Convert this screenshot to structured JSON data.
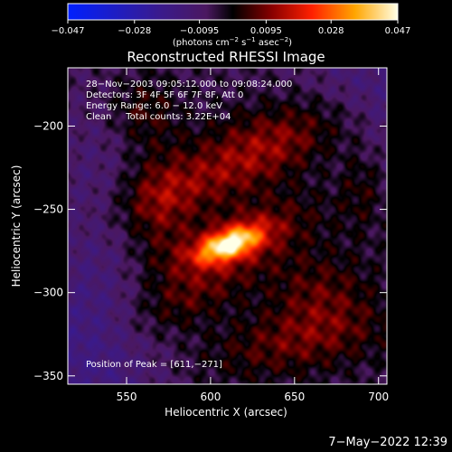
{
  "chart_data": {
    "type": "heatmap",
    "title": "Reconstructed RHESSI Image",
    "xlabel": "Heliocentric X (arcsec)",
    "ylabel": "Heliocentric Y (arcsec)",
    "xlim": [
      515,
      705
    ],
    "ylim": [
      -355,
      -165
    ],
    "x_ticks": [
      550,
      600,
      650,
      700
    ],
    "y_ticks": [
      -200,
      -250,
      -300,
      -350
    ],
    "x_tick_labels": [
      "550",
      "600",
      "650",
      "700"
    ],
    "y_tick_labels": [
      "−200",
      "−250",
      "−300",
      "−350"
    ],
    "colorbar": {
      "range": [
        -0.047,
        0.047
      ],
      "ticks": [
        -0.047,
        -0.028,
        -0.0095,
        0.0095,
        0.028,
        0.047
      ],
      "tick_labels": [
        "−0.047",
        "−0.028",
        "−0.0095",
        "0.0095",
        "0.028",
        "0.047"
      ],
      "unit_prefix": "(photons cm",
      "unit_sup1": "−2",
      "unit_mid": " s",
      "unit_sup2": "−1",
      "unit_mid2": " asec",
      "unit_sup3": "−2",
      "unit_suffix": ")"
    },
    "annotations": [
      "28−Nov−2003 09:05:12.000 to 09:08:24.000",
      "Detectors: 3F 4F 5F 6F 7F 8F, Att 0",
      "Energy Range: 6.0 − 12.0 keV",
      "Clean     Total counts: 3.22E+04"
    ],
    "peak_label": "Position of Peak = [611,−271]",
    "peak": {
      "x": 611,
      "y": -271,
      "value": 0.047
    },
    "sources": [
      {
        "x": 611,
        "y": -271,
        "sx": 14,
        "sy": 6,
        "angle": 20,
        "amp": 0.041
      },
      {
        "x": 618,
        "y": -268,
        "sx": 34,
        "sy": 14,
        "angle": 22,
        "amp": 0.016
      },
      {
        "x": 640,
        "y": -205,
        "sx": 38,
        "sy": 14,
        "angle": 15,
        "amp": 0.013
      },
      {
        "x": 600,
        "y": -232,
        "sx": 42,
        "sy": 12,
        "angle": 18,
        "amp": 0.012
      },
      {
        "x": 665,
        "y": -300,
        "sx": 22,
        "sy": 18,
        "angle": 0,
        "amp": 0.011
      },
      {
        "x": 650,
        "y": -330,
        "sx": 40,
        "sy": 14,
        "angle": 10,
        "amp": 0.012
      },
      {
        "x": 570,
        "y": -250,
        "sx": 14,
        "sy": 25,
        "angle": 0,
        "amp": 0.01
      },
      {
        "x": 560,
        "y": -190,
        "sx": 14,
        "sy": 14,
        "angle": 0,
        "amp": 0.009
      },
      {
        "x": 585,
        "y": -305,
        "sx": 28,
        "sy": 12,
        "angle": 25,
        "amp": 0.01
      },
      {
        "x": 690,
        "y": -235,
        "sx": 10,
        "sy": 20,
        "angle": 0,
        "amp": 0.008
      }
    ],
    "background": [
      {
        "x": 525,
        "y": -340,
        "sx": 35,
        "sy": 40,
        "amp": -0.011
      },
      {
        "x": 700,
        "y": -185,
        "sx": 30,
        "sy": 30,
        "amp": -0.01
      },
      {
        "x": 530,
        "y": -240,
        "sx": 18,
        "sy": 45,
        "amp": -0.006
      }
    ]
  },
  "footer": {
    "timestamp": "7−May−2022 12:39"
  }
}
